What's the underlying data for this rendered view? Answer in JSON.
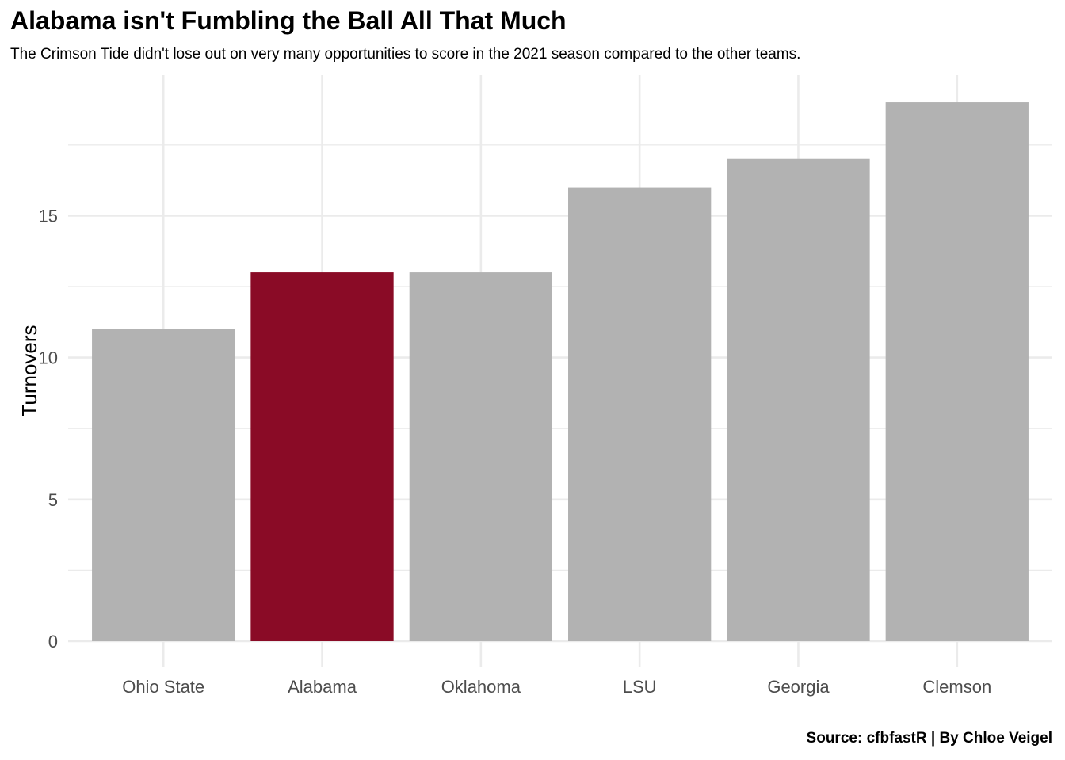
{
  "title": "Alabama isn't Fumbling the Ball All That Much",
  "subtitle": "The Crimson Tide didn't lose out on very many opportunities to score in the 2021 season compared to the other teams.",
  "caption": "Source: cfbfastR | By Chloe Veigel",
  "colors": {
    "highlight": "#8a0b26",
    "other": "#b2b2b2",
    "grid": "#ebebeb"
  },
  "chart_data": {
    "type": "bar",
    "categories": [
      "Ohio State",
      "Alabama",
      "Oklahoma",
      "LSU",
      "Georgia",
      "Clemson"
    ],
    "values": [
      11,
      13,
      13,
      16,
      17,
      19
    ],
    "highlight": "Alabama",
    "xlabel": "",
    "ylabel": "Turnovers",
    "ylim": [
      0,
      19.95
    ],
    "yticks": [
      0,
      5,
      10,
      15
    ],
    "grid": true,
    "legend": "none"
  }
}
